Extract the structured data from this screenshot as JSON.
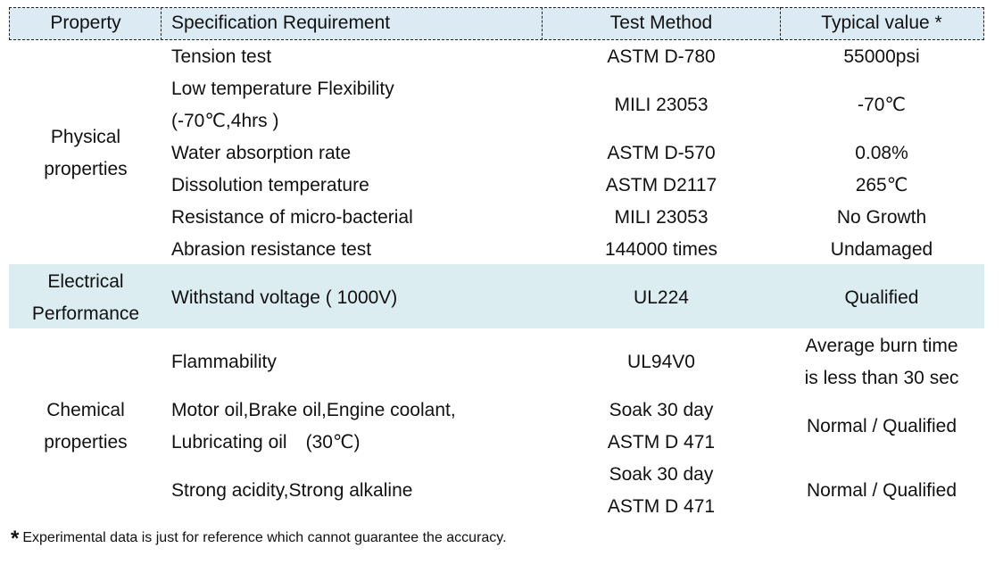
{
  "table": {
    "header": [
      "Property",
      "Specification Requirement",
      "Test Method",
      "Typical value *"
    ],
    "groups": [
      {
        "property": "Physical\nproperties",
        "rows": [
          [
            "Tension test",
            "ASTM D-780",
            "55000psi"
          ],
          [
            "Low temperature Flexibility\n(-70℃,4hrs )",
            "MILI 23053",
            "-70℃"
          ],
          [
            "Water absorption rate",
            "ASTM D-570",
            "0.08%"
          ],
          [
            "Dissolution temperature",
            "ASTM D2117",
            "265℃"
          ],
          [
            "Resistance of micro-bacterial",
            "MILI 23053",
            "No Growth"
          ],
          [
            "Abrasion resistance test",
            "144000 times",
            "Undamaged"
          ]
        ]
      },
      {
        "property": "Electrical\nPerformance",
        "rows": [
          [
            "Withstand voltage ( 1000V)",
            "UL224",
            "Qualified"
          ]
        ]
      },
      {
        "property": "Chemical\nproperties",
        "rows": [
          [
            "Flammability",
            "UL94V0",
            "Average burn time\nis less than 30 sec"
          ],
          [
            "Motor oil,Brake oil,Engine coolant,\nLubricating oil　(30℃)",
            "Soak 30 day\nASTM D 471",
            "Normal / Qualified"
          ],
          [
            "Strong acidity,Strong alkaline",
            "Soak 30 day\nASTM D 471",
            "Normal / Qualified"
          ]
        ]
      }
    ]
  },
  "footnote": {
    "mark": "*",
    "text": "Experimental data is just for reference which cannot guarantee the accuracy."
  }
}
